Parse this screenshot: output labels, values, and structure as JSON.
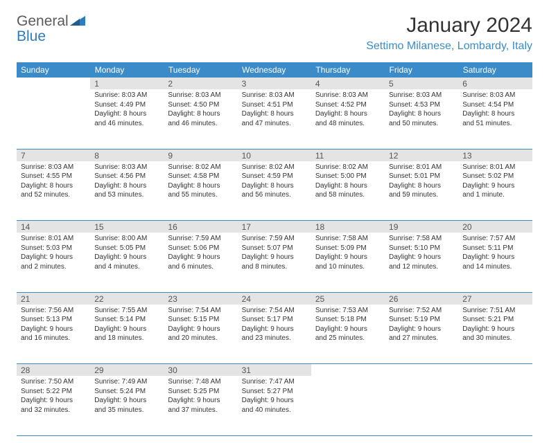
{
  "brand": {
    "word1": "General",
    "word2": "Blue"
  },
  "title": "January 2024",
  "location": "Settimo Milanese, Lombardy, Italy",
  "colors": {
    "header_bg": "#3b8bc8",
    "header_text": "#ffffff",
    "daynum_bg": "#e4e4e4",
    "rule": "#3b8bc8",
    "brand_gray": "#5a5a5a",
    "brand_blue": "#2f7bbf"
  },
  "weekdays": [
    "Sunday",
    "Monday",
    "Tuesday",
    "Wednesday",
    "Thursday",
    "Friday",
    "Saturday"
  ],
  "start_offset": 1,
  "days": [
    {
      "n": "1",
      "sr": "8:03 AM",
      "ss": "4:49 PM",
      "dl": "8 hours and 46 minutes."
    },
    {
      "n": "2",
      "sr": "8:03 AM",
      "ss": "4:50 PM",
      "dl": "8 hours and 46 minutes."
    },
    {
      "n": "3",
      "sr": "8:03 AM",
      "ss": "4:51 PM",
      "dl": "8 hours and 47 minutes."
    },
    {
      "n": "4",
      "sr": "8:03 AM",
      "ss": "4:52 PM",
      "dl": "8 hours and 48 minutes."
    },
    {
      "n": "5",
      "sr": "8:03 AM",
      "ss": "4:53 PM",
      "dl": "8 hours and 50 minutes."
    },
    {
      "n": "6",
      "sr": "8:03 AM",
      "ss": "4:54 PM",
      "dl": "8 hours and 51 minutes."
    },
    {
      "n": "7",
      "sr": "8:03 AM",
      "ss": "4:55 PM",
      "dl": "8 hours and 52 minutes."
    },
    {
      "n": "8",
      "sr": "8:03 AM",
      "ss": "4:56 PM",
      "dl": "8 hours and 53 minutes."
    },
    {
      "n": "9",
      "sr": "8:02 AM",
      "ss": "4:58 PM",
      "dl": "8 hours and 55 minutes."
    },
    {
      "n": "10",
      "sr": "8:02 AM",
      "ss": "4:59 PM",
      "dl": "8 hours and 56 minutes."
    },
    {
      "n": "11",
      "sr": "8:02 AM",
      "ss": "5:00 PM",
      "dl": "8 hours and 58 minutes."
    },
    {
      "n": "12",
      "sr": "8:01 AM",
      "ss": "5:01 PM",
      "dl": "8 hours and 59 minutes."
    },
    {
      "n": "13",
      "sr": "8:01 AM",
      "ss": "5:02 PM",
      "dl": "9 hours and 1 minute."
    },
    {
      "n": "14",
      "sr": "8:01 AM",
      "ss": "5:03 PM",
      "dl": "9 hours and 2 minutes."
    },
    {
      "n": "15",
      "sr": "8:00 AM",
      "ss": "5:05 PM",
      "dl": "9 hours and 4 minutes."
    },
    {
      "n": "16",
      "sr": "7:59 AM",
      "ss": "5:06 PM",
      "dl": "9 hours and 6 minutes."
    },
    {
      "n": "17",
      "sr": "7:59 AM",
      "ss": "5:07 PM",
      "dl": "9 hours and 8 minutes."
    },
    {
      "n": "18",
      "sr": "7:58 AM",
      "ss": "5:09 PM",
      "dl": "9 hours and 10 minutes."
    },
    {
      "n": "19",
      "sr": "7:58 AM",
      "ss": "5:10 PM",
      "dl": "9 hours and 12 minutes."
    },
    {
      "n": "20",
      "sr": "7:57 AM",
      "ss": "5:11 PM",
      "dl": "9 hours and 14 minutes."
    },
    {
      "n": "21",
      "sr": "7:56 AM",
      "ss": "5:13 PM",
      "dl": "9 hours and 16 minutes."
    },
    {
      "n": "22",
      "sr": "7:55 AM",
      "ss": "5:14 PM",
      "dl": "9 hours and 18 minutes."
    },
    {
      "n": "23",
      "sr": "7:54 AM",
      "ss": "5:15 PM",
      "dl": "9 hours and 20 minutes."
    },
    {
      "n": "24",
      "sr": "7:54 AM",
      "ss": "5:17 PM",
      "dl": "9 hours and 23 minutes."
    },
    {
      "n": "25",
      "sr": "7:53 AM",
      "ss": "5:18 PM",
      "dl": "9 hours and 25 minutes."
    },
    {
      "n": "26",
      "sr": "7:52 AM",
      "ss": "5:19 PM",
      "dl": "9 hours and 27 minutes."
    },
    {
      "n": "27",
      "sr": "7:51 AM",
      "ss": "5:21 PM",
      "dl": "9 hours and 30 minutes."
    },
    {
      "n": "28",
      "sr": "7:50 AM",
      "ss": "5:22 PM",
      "dl": "9 hours and 32 minutes."
    },
    {
      "n": "29",
      "sr": "7:49 AM",
      "ss": "5:24 PM",
      "dl": "9 hours and 35 minutes."
    },
    {
      "n": "30",
      "sr": "7:48 AM",
      "ss": "5:25 PM",
      "dl": "9 hours and 37 minutes."
    },
    {
      "n": "31",
      "sr": "7:47 AM",
      "ss": "5:27 PM",
      "dl": "9 hours and 40 minutes."
    }
  ],
  "labels": {
    "sunrise": "Sunrise:",
    "sunset": "Sunset:",
    "daylight": "Daylight:"
  }
}
